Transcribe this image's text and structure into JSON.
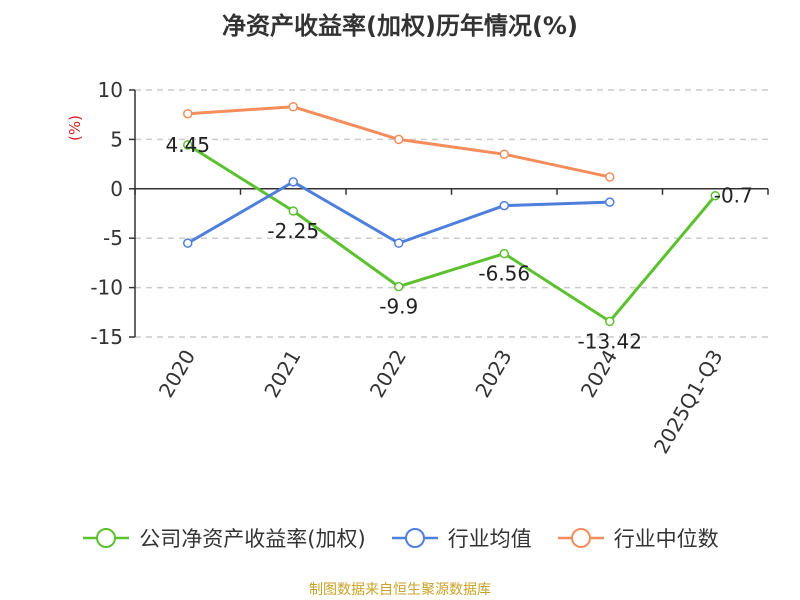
{
  "chart_data": {
    "type": "line",
    "title": "净资产收益率(加权)历年情况(%)",
    "ylabel": "(%)",
    "categories": [
      "2020",
      "2021",
      "2022",
      "2023",
      "2024",
      "2025Q1-Q3"
    ],
    "ylim": [
      -15,
      10
    ],
    "yticks": [
      10,
      5,
      0,
      -5,
      -10,
      -15
    ],
    "grid": true,
    "legend_position": "bottom",
    "series": [
      {
        "name": "公司净资产收益率(加权)",
        "color": "#5cc12f",
        "values": [
          4.45,
          -2.25,
          -9.9,
          -6.56,
          -13.42,
          -0.7
        ],
        "labels": [
          "4.45",
          "-2.25",
          "-9.9",
          "-6.56",
          "-13.42",
          "-0.7"
        ],
        "show_labels": true
      },
      {
        "name": "行业均值",
        "color": "#4e7fdc",
        "values": [
          -5.5,
          0.7,
          -5.5,
          -1.7,
          -1.35,
          null
        ],
        "show_labels": false
      },
      {
        "name": "行业中位数",
        "color": "#f48d5b",
        "values": [
          7.6,
          8.3,
          5.0,
          3.5,
          1.2,
          null
        ],
        "show_labels": false
      }
    ],
    "source": "制图数据来自恒生聚源数据库"
  },
  "colors": {
    "axis": "#333333",
    "grid": "#cccccc",
    "ylabel": "#e02020",
    "source": "#c9a227"
  }
}
